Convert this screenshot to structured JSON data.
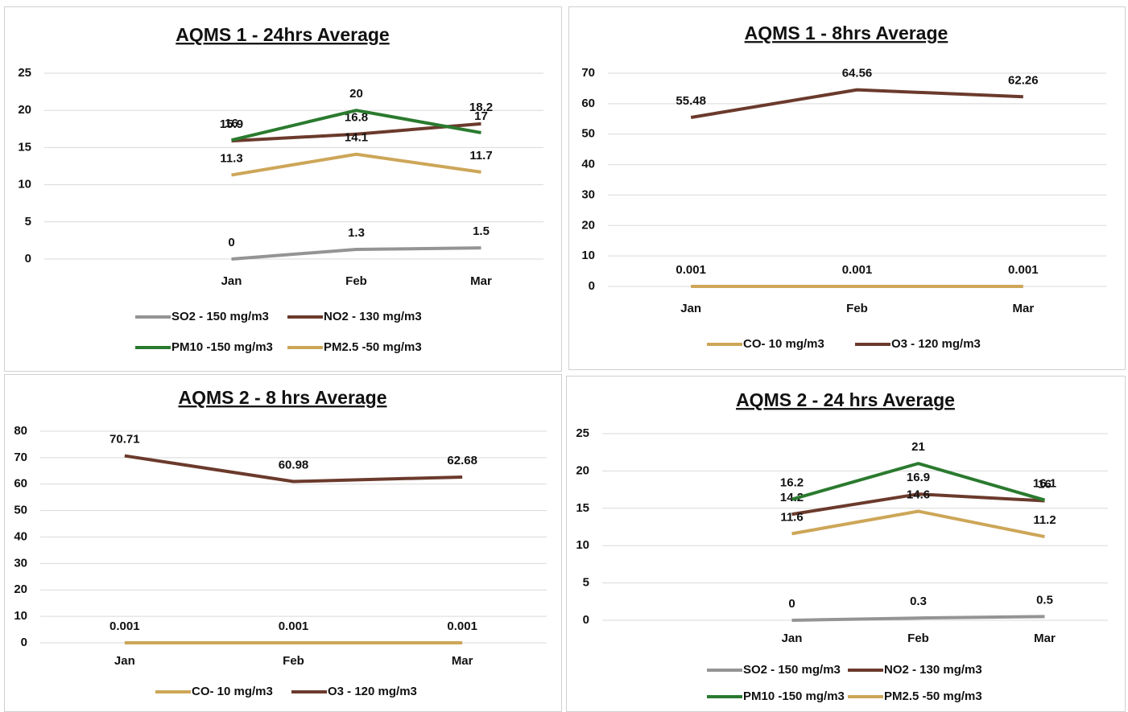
{
  "chart_data": [
    {
      "type": "line",
      "title": "AQMS 1 - 24hrs Average",
      "categories": [
        null,
        "Jan",
        "Feb",
        "Mar"
      ],
      "series": [
        {
          "name": "SO2 - 150 mg/m3",
          "color": "#949494",
          "values": [
            null,
            0,
            1.3,
            1.5
          ]
        },
        {
          "name": "NO2 - 130 mg/m3",
          "color": "#6b3a2c",
          "values": [
            null,
            15.9,
            16.8,
            18.2
          ]
        },
        {
          "name": "PM10 -150 mg/m3",
          "color": "#2a7a2e",
          "values": [
            null,
            16,
            20,
            17
          ]
        },
        {
          "name": "PM2.5 -50 mg/m3",
          "color": "#cda658",
          "values": [
            null,
            11.3,
            14.1,
            11.7
          ]
        }
      ],
      "ylim": [
        0,
        25
      ],
      "yticks": [
        0,
        5,
        10,
        15,
        20,
        25
      ],
      "grid": true
    },
    {
      "type": "line",
      "title": "AQMS 1 - 8hrs Average",
      "categories": [
        "Jan",
        "Feb",
        "Mar"
      ],
      "series": [
        {
          "name": "CO- 10 mg/m3",
          "color": "#cda658",
          "values": [
            0.001,
            0.001,
            0.001
          ]
        },
        {
          "name": "O3 - 120 mg/m3",
          "color": "#6b3a2c",
          "values": [
            55.48,
            64.56,
            62.26
          ]
        }
      ],
      "ylim": [
        0,
        70
      ],
      "yticks": [
        0,
        10,
        20,
        30,
        40,
        50,
        60,
        70
      ],
      "grid": true
    },
    {
      "type": "line",
      "title": "AQMS 2 - 8 hrs Average",
      "categories": [
        "Jan",
        "Feb",
        "Mar"
      ],
      "series": [
        {
          "name": "CO- 10 mg/m3",
          "color": "#cda658",
          "values": [
            0.001,
            0.001,
            0.001
          ]
        },
        {
          "name": "O3 - 120 mg/m3",
          "color": "#6b3a2c",
          "values": [
            70.71,
            60.98,
            62.68
          ]
        }
      ],
      "ylim": [
        0,
        80
      ],
      "yticks": [
        0,
        10,
        20,
        30,
        40,
        50,
        60,
        70,
        80
      ],
      "grid": true
    },
    {
      "type": "line",
      "title": "AQMS 2 - 24 hrs Average",
      "categories": [
        null,
        "Jan",
        "Feb",
        "Mar"
      ],
      "series": [
        {
          "name": "SO2 - 150 mg/m3",
          "color": "#949494",
          "values": [
            null,
            0,
            0.3,
            0.5
          ]
        },
        {
          "name": "NO2 - 130 mg/m3",
          "color": "#6b3a2c",
          "values": [
            null,
            14.2,
            16.9,
            16
          ]
        },
        {
          "name": "PM10 -150 mg/m3",
          "color": "#2a7a2e",
          "values": [
            null,
            16.2,
            21,
            16.1
          ]
        },
        {
          "name": "PM2.5 -50 mg/m3",
          "color": "#cda658",
          "values": [
            null,
            11.6,
            14.6,
            11.2
          ]
        }
      ],
      "ylim": [
        0,
        25
      ],
      "yticks": [
        0,
        5,
        10,
        15,
        20,
        25
      ],
      "grid": true
    }
  ]
}
